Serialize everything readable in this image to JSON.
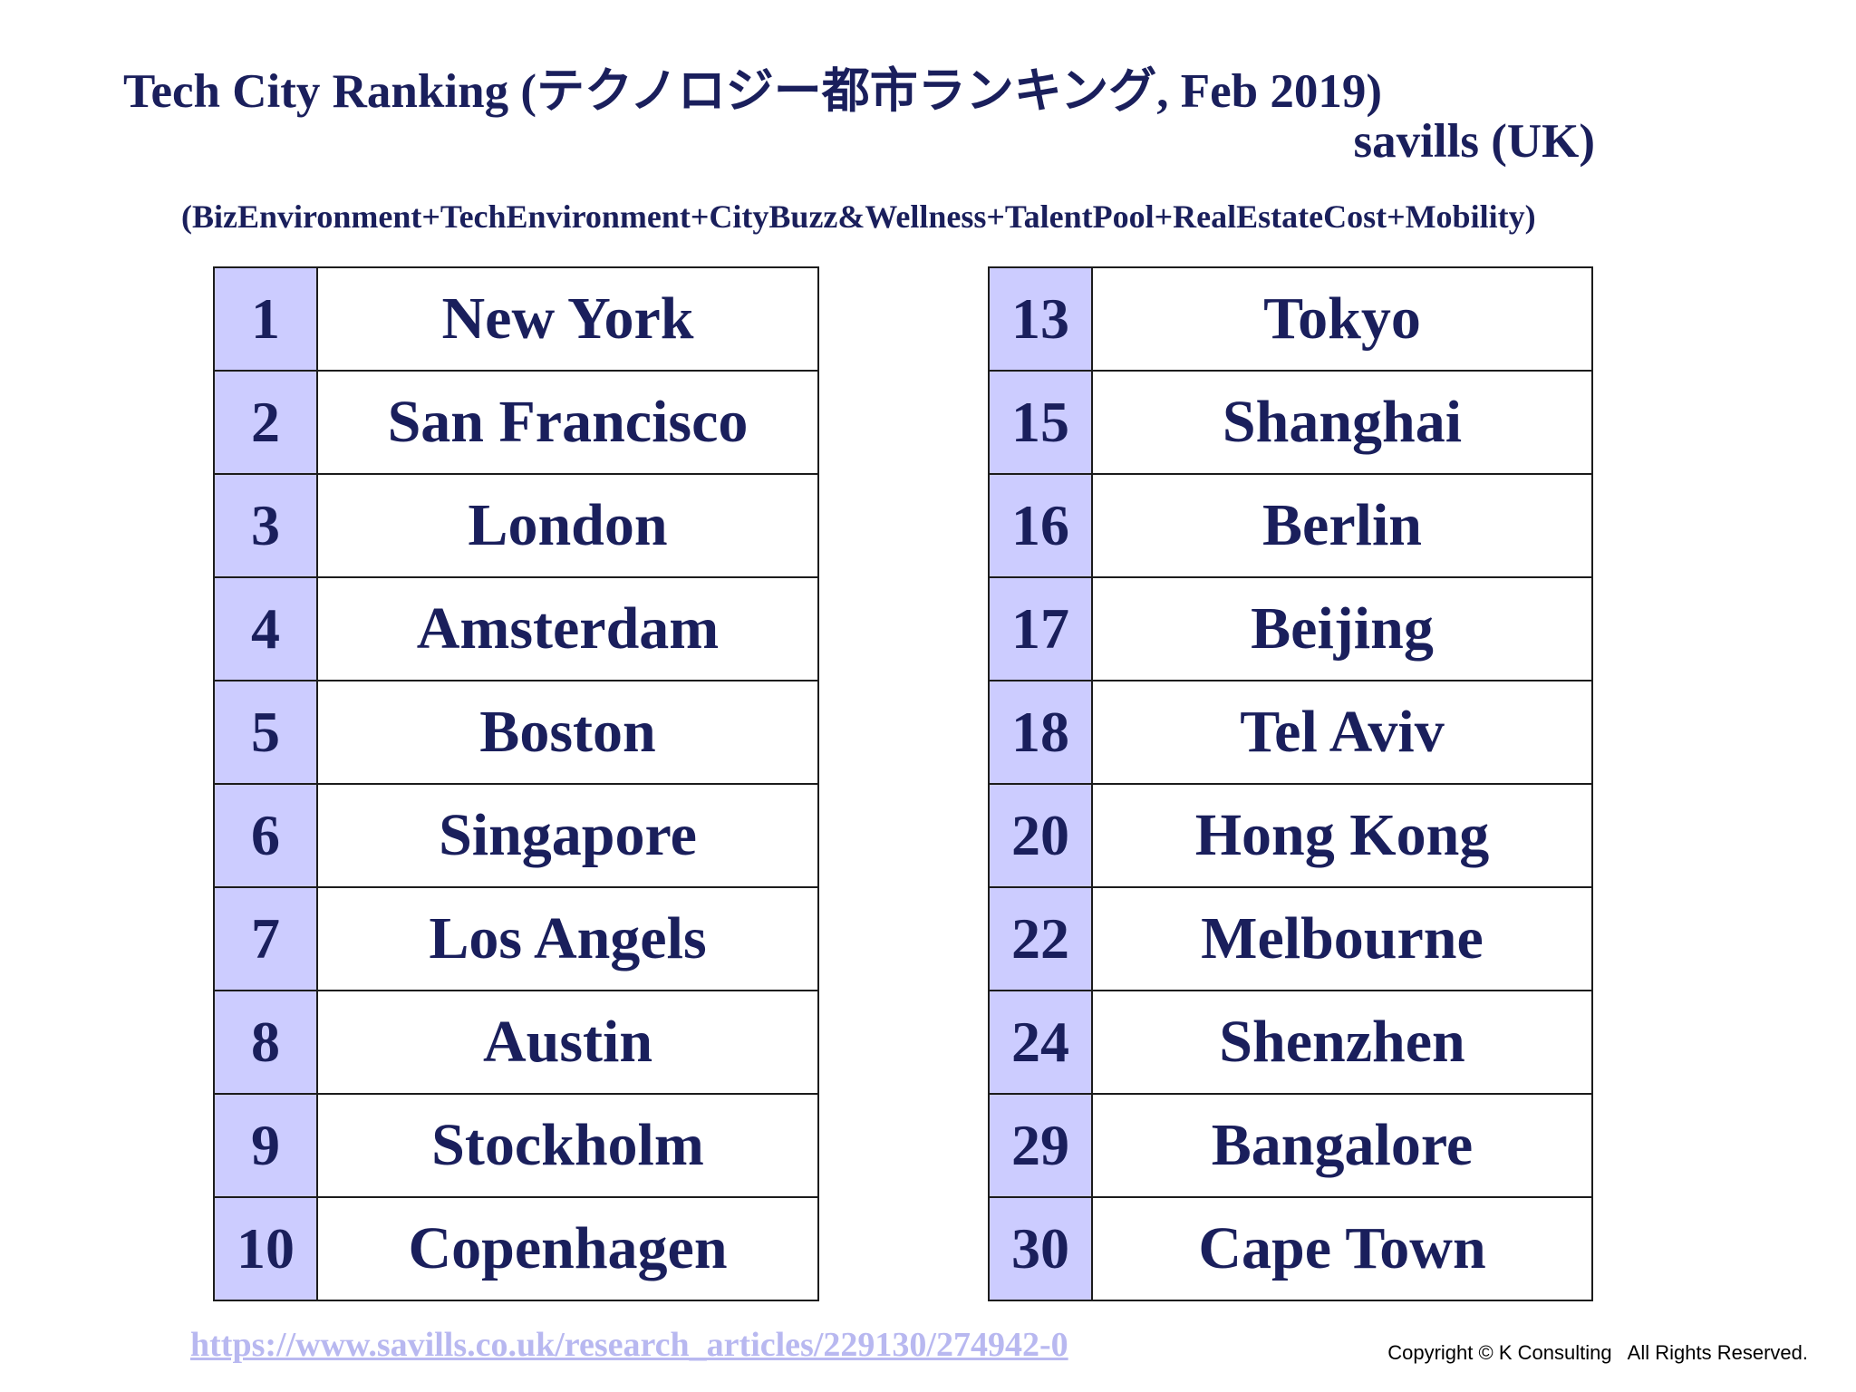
{
  "title": "Tech City Ranking (テクノロジー都市ランキング, Feb 2019)",
  "source": "savills (UK)",
  "formula": "(BizEnvironment+TechEnvironment+CityBuzz&Wellness+TalentPool+RealEstateCost+Mobility)",
  "colors": {
    "text": "#1a1f5c",
    "rank_cell_bg": "#ccccff",
    "link": "#b8b8f0"
  },
  "left_table": [
    {
      "rank": "1",
      "city": "New York"
    },
    {
      "rank": "2",
      "city": "San Francisco"
    },
    {
      "rank": "3",
      "city": "London"
    },
    {
      "rank": "4",
      "city": "Amsterdam"
    },
    {
      "rank": "5",
      "city": "Boston"
    },
    {
      "rank": "6",
      "city": "Singapore"
    },
    {
      "rank": "7",
      "city": "Los Angels"
    },
    {
      "rank": "8",
      "city": "Austin"
    },
    {
      "rank": "9",
      "city": "Stockholm"
    },
    {
      "rank": "10",
      "city": "Copenhagen"
    }
  ],
  "right_table": [
    {
      "rank": "13",
      "city": "Tokyo"
    },
    {
      "rank": "15",
      "city": "Shanghai"
    },
    {
      "rank": "16",
      "city": "Berlin"
    },
    {
      "rank": "17",
      "city": "Beijing"
    },
    {
      "rank": "18",
      "city": "Tel Aviv"
    },
    {
      "rank": "20",
      "city": "Hong Kong"
    },
    {
      "rank": "22",
      "city": "Melbourne"
    },
    {
      "rank": "24",
      "city": "Shenzhen"
    },
    {
      "rank": "29",
      "city": "Bangalore"
    },
    {
      "rank": "30",
      "city": "Cape Town"
    }
  ],
  "url": "https://www.savills.co.uk/research_articles/229130/274942-0",
  "copyright": "Copyright © K Consulting   All Rights Reserved."
}
